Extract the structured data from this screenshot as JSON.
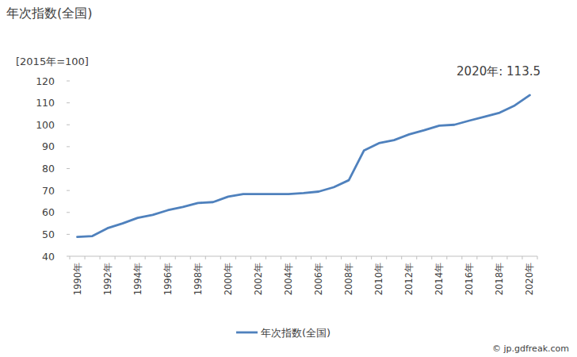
{
  "chart_data": {
    "type": "line",
    "title": "年次指数(全国)",
    "y_label": "[2015年=100]",
    "annotation": "2020年: 113.5",
    "source": "© jp.gdfreak.com",
    "categories": [
      "1990年",
      null,
      "1992年",
      null,
      "1994年",
      null,
      "1996年",
      null,
      "1998年",
      null,
      "2000年",
      null,
      "2002年",
      null,
      "2004年",
      null,
      "2006年",
      null,
      "2008年",
      null,
      "2010年",
      null,
      "2012年",
      null,
      "2014年",
      null,
      "2016年",
      null,
      "2018年",
      null,
      "2020年"
    ],
    "series": [
      {
        "name": "年次指数(全国)",
        "color": "#4f81bd",
        "values": [
          48.8,
          49.2,
          52.8,
          55.0,
          57.5,
          58.9,
          61.0,
          62.5,
          64.3,
          64.7,
          67.2,
          68.4,
          68.4,
          68.4,
          68.4,
          68.8,
          69.5,
          71.5,
          74.7,
          88.2,
          91.6,
          93.0,
          95.6,
          97.5,
          99.6,
          100,
          101.9,
          103.7,
          105.5,
          108.8,
          113.5
        ]
      }
    ],
    "ylim": [
      40,
      120
    ],
    "yticks": [
      40,
      50,
      60,
      70,
      80,
      90,
      100,
      110,
      120
    ],
    "grid": false,
    "legend": "bottom"
  }
}
